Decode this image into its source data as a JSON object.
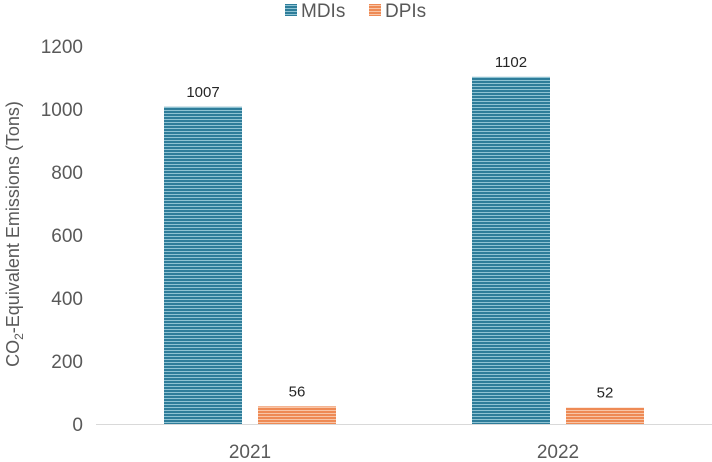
{
  "chart_data": {
    "type": "bar",
    "categories": [
      "2021",
      "2022"
    ],
    "series": [
      {
        "name": "MDIs",
        "values": [
          1007,
          1102
        ]
      },
      {
        "name": "DPIs",
        "values": [
          56,
          52
        ]
      }
    ],
    "ylabel": {
      "main": "CO",
      "sub": "2",
      "rest": "-Equivalent Emissions (Tons)"
    },
    "ylim": [
      0,
      1200
    ],
    "yticks": [
      "0",
      "200",
      "400",
      "600",
      "800",
      "1000",
      "1200"
    ],
    "legend_position": "top-center",
    "grid": false,
    "colors": {
      "MDIs": "#2e7d9a",
      "DPIs": "#ee8a55"
    }
  }
}
